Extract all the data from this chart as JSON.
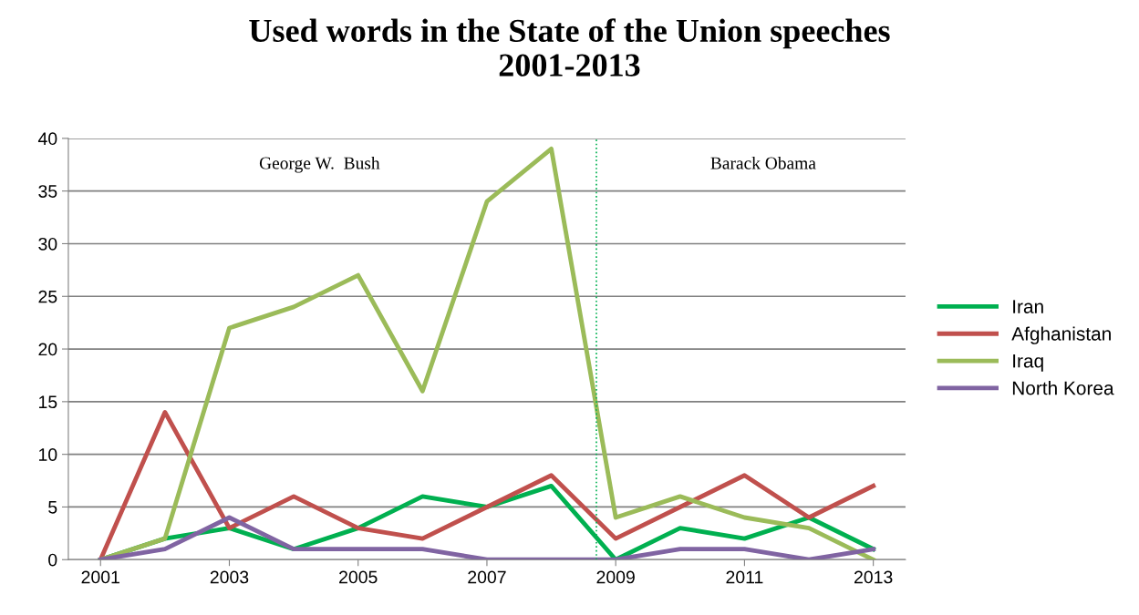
{
  "chart_data": {
    "type": "line",
    "title": "Used words in the State of the Union speeches\n2001-2013",
    "x": [
      2001,
      2002,
      2003,
      2004,
      2005,
      2006,
      2007,
      2008,
      2009,
      2010,
      2011,
      2012,
      2013
    ],
    "series": [
      {
        "name": "Iran",
        "color": "#00b050",
        "values": [
          0,
          2,
          3,
          1,
          3,
          6,
          5,
          7,
          0,
          3,
          2,
          4,
          1
        ]
      },
      {
        "name": "Afghanistan",
        "color": "#c0504d",
        "values": [
          0,
          14,
          3,
          6,
          3,
          2,
          5,
          8,
          2,
          5,
          8,
          4,
          7
        ]
      },
      {
        "name": "Iraq",
        "color": "#9bbb59",
        "values": [
          0,
          2,
          22,
          24,
          27,
          16,
          34,
          39,
          4,
          6,
          4,
          3,
          0
        ]
      },
      {
        "name": "North Korea",
        "color": "#8064a2",
        "values": [
          0,
          1,
          4,
          1,
          1,
          1,
          0,
          0,
          0,
          1,
          1,
          0,
          1
        ]
      }
    ],
    "xlim": [
      2000.5,
      2013.5
    ],
    "xticks": [
      2001,
      2003,
      2005,
      2007,
      2009,
      2011,
      2013
    ],
    "ylim": [
      0,
      40
    ],
    "yticks": [
      0,
      5,
      10,
      15,
      20,
      25,
      30,
      35,
      40
    ],
    "grid": "y",
    "legend": "right",
    "marker": "none",
    "line_style": "solid",
    "ref_lines": [
      {
        "axis": "x",
        "value": 2008.7,
        "color": "#00b050",
        "line_style": "dotted"
      }
    ],
    "annotations": [
      "George W.  Bush",
      "Barack Obama"
    ]
  }
}
